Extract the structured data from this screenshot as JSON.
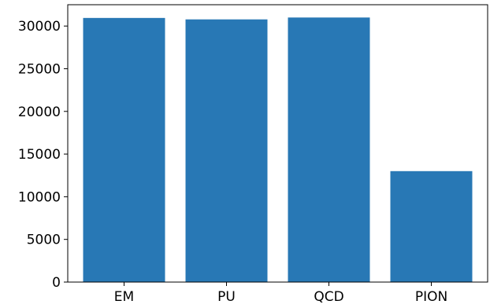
{
  "chart_data": {
    "type": "bar",
    "categories": [
      "EM",
      "PU",
      "QCD",
      "PION"
    ],
    "values": [
      30950,
      30780,
      31000,
      13000
    ],
    "yticks": [
      0,
      5000,
      10000,
      15000,
      20000,
      25000,
      30000
    ],
    "ylim": [
      0,
      32500
    ],
    "title": "",
    "xlabel": "",
    "ylabel": "",
    "bar_color": "#2878b5",
    "grid": false
  }
}
